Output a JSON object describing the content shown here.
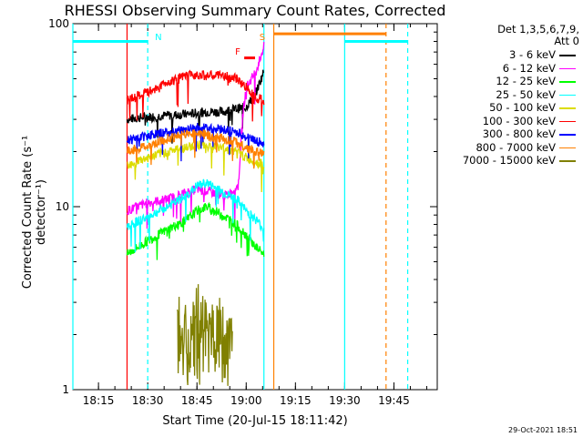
{
  "chart_data": {
    "type": "line",
    "title": "RHESSI Observing Summary Count Rates, Corrected",
    "xlabel": "Start Time (20-Jul-15 18:11:42)",
    "ylabel": "Corrected Count Rate (s⁻¹ detector⁻¹)",
    "ylog": true,
    "ylim": [
      1,
      100
    ],
    "xlim_minutes": [
      18.12,
      19.97
    ],
    "yticks": [
      "1",
      "10",
      "100"
    ],
    "xticks": [
      {
        "label": "18:15",
        "t": 18.25
      },
      {
        "label": "18:30",
        "t": 18.5
      },
      {
        "label": "18:45",
        "t": 18.75
      },
      {
        "label": "19:00",
        "t": 19.0
      },
      {
        "label": "19:15",
        "t": 19.25
      },
      {
        "label": "19:30",
        "t": 19.5
      },
      {
        "label": "19:45",
        "t": 19.75
      }
    ],
    "legend_header": [
      "Det 1,3,5,6,7,9,",
      "Att 0"
    ],
    "series": [
      {
        "name": "3 - 6 keV",
        "color": "#000000",
        "points": [
          [
            18.395,
            30
          ],
          [
            18.5,
            31
          ],
          [
            18.6,
            31.5
          ],
          [
            18.7,
            32
          ],
          [
            18.8,
            33
          ],
          [
            18.88,
            33
          ],
          [
            18.93,
            34
          ],
          [
            19.0,
            35
          ],
          [
            19.05,
            42
          ],
          [
            19.09,
            55
          ]
        ]
      },
      {
        "name": "6 - 12 keV",
        "color": "#ff00ff",
        "points": [
          [
            18.395,
            9.5
          ],
          [
            18.5,
            10.5
          ],
          [
            18.6,
            11
          ],
          [
            18.7,
            12
          ],
          [
            18.75,
            12.5
          ],
          [
            18.82,
            12
          ],
          [
            18.9,
            11.5
          ],
          [
            18.96,
            13
          ],
          [
            18.98,
            30
          ],
          [
            19.0,
            45
          ],
          [
            19.05,
            55
          ],
          [
            19.09,
            75
          ]
        ]
      },
      {
        "name": "12 - 25 keV",
        "color": "#00ff00",
        "points": [
          [
            18.395,
            5.5
          ],
          [
            18.5,
            6.5
          ],
          [
            18.6,
            7.5
          ],
          [
            18.7,
            8.5
          ],
          [
            18.75,
            9.5
          ],
          [
            18.8,
            10
          ],
          [
            18.88,
            9
          ],
          [
            18.95,
            8
          ],
          [
            19.0,
            7
          ],
          [
            19.05,
            6
          ],
          [
            19.09,
            5.5
          ]
        ]
      },
      {
        "name": "25 - 50 keV",
        "color": "#00ffff",
        "points": [
          [
            18.395,
            7.8
          ],
          [
            18.5,
            8.8
          ],
          [
            18.6,
            10
          ],
          [
            18.7,
            11.5
          ],
          [
            18.75,
            13
          ],
          [
            18.8,
            13.5
          ],
          [
            18.88,
            12
          ],
          [
            18.95,
            11
          ],
          [
            19.0,
            9.5
          ],
          [
            19.05,
            8.5
          ],
          [
            19.09,
            7.5
          ]
        ]
      },
      {
        "name": "50 - 100 keV",
        "color": "#dcdc00",
        "points": [
          [
            18.395,
            17
          ],
          [
            18.5,
            18.5
          ],
          [
            18.6,
            20
          ],
          [
            18.7,
            21
          ],
          [
            18.75,
            22
          ],
          [
            18.8,
            21.5
          ],
          [
            18.88,
            21
          ],
          [
            18.95,
            20
          ],
          [
            19.0,
            18.5
          ],
          [
            19.05,
            17.5
          ],
          [
            19.09,
            17
          ]
        ]
      },
      {
        "name": "100 - 300 keV",
        "color": "#ff0000",
        "points": [
          [
            18.395,
            38
          ],
          [
            18.5,
            42
          ],
          [
            18.6,
            48
          ],
          [
            18.7,
            52
          ],
          [
            18.75,
            53
          ],
          [
            18.8,
            52
          ],
          [
            18.88,
            52
          ],
          [
            18.95,
            50
          ],
          [
            19.0,
            45
          ],
          [
            19.05,
            40
          ],
          [
            19.09,
            38
          ]
        ]
      },
      {
        "name": "300 - 800 keV",
        "color": "#0000ff",
        "points": [
          [
            18.395,
            23
          ],
          [
            18.5,
            24.5
          ],
          [
            18.6,
            25.5
          ],
          [
            18.7,
            26.5
          ],
          [
            18.75,
            27
          ],
          [
            18.8,
            27
          ],
          [
            18.88,
            26.5
          ],
          [
            18.95,
            25.5
          ],
          [
            19.0,
            24
          ],
          [
            19.05,
            23
          ],
          [
            19.09,
            22
          ]
        ]
      },
      {
        "name": "800 - 7000 keV",
        "color": "#ff8000",
        "points": [
          [
            18.395,
            20
          ],
          [
            18.5,
            21.5
          ],
          [
            18.6,
            23.5
          ],
          [
            18.7,
            25
          ],
          [
            18.75,
            25.5
          ],
          [
            18.8,
            24.5
          ],
          [
            18.88,
            23.5
          ],
          [
            18.95,
            22.5
          ],
          [
            19.0,
            21
          ],
          [
            19.05,
            20
          ],
          [
            19.09,
            19.5
          ]
        ]
      },
      {
        "name": "7000 - 15000 keV",
        "color": "#808000",
        "points": [
          [
            18.65,
            2.4
          ],
          [
            18.7,
            2.0
          ],
          [
            18.75,
            2.6
          ],
          [
            18.8,
            2.2
          ],
          [
            18.85,
            2.4
          ],
          [
            18.9,
            2.1
          ],
          [
            18.93,
            1.8
          ]
        ]
      }
    ],
    "annotations": [
      {
        "text": "N",
        "color": "#00ffff",
        "t": 18.5
      },
      {
        "text": "F",
        "color": "#ff0000",
        "t": 18.99
      },
      {
        "text": "S",
        "color": "#ff8000",
        "t": 19.095
      }
    ],
    "bars": [
      {
        "color": "#00ffff",
        "from": 18.12,
        "to": 18.5,
        "y": 80
      },
      {
        "color": "#ff0000",
        "from": 18.99,
        "to": 19.045,
        "y": 65
      },
      {
        "color": "#ff8000",
        "from": 19.14,
        "to": 19.71,
        "y": 88
      },
      {
        "color": "#00ffff",
        "from": 19.5,
        "to": 19.82,
        "y": 80
      }
    ],
    "vlines": [
      {
        "t": 18.12,
        "color": "#00ffff",
        "style": "solid"
      },
      {
        "t": 18.5,
        "color": "#00ffff",
        "style": "dashed"
      },
      {
        "t": 18.395,
        "color": "#ff0000",
        "style": "solid"
      },
      {
        "t": 19.09,
        "color": "#00ffff",
        "style": "solid"
      },
      {
        "t": 19.14,
        "color": "#ff8000",
        "style": "solid"
      },
      {
        "t": 19.5,
        "color": "#00ffff",
        "style": "solid"
      },
      {
        "t": 19.71,
        "color": "#ff8000",
        "style": "dashed"
      },
      {
        "t": 19.82,
        "color": "#00ffff",
        "style": "dashed"
      }
    ],
    "legend_placement": "right",
    "grid": false
  },
  "timestamp": "29-Oct-2021 18:51"
}
